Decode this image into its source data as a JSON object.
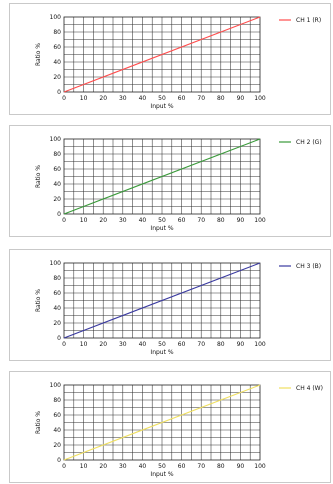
{
  "chart_data": [
    {
      "type": "line",
      "xlabel": "Input %",
      "ylabel": "Ratio %",
      "xlim": [
        0,
        100
      ],
      "ylim": [
        0,
        100
      ],
      "x_ticks": [
        0,
        10,
        20,
        30,
        40,
        50,
        60,
        70,
        80,
        90,
        100
      ],
      "y_ticks": [
        0,
        20,
        40,
        60,
        80,
        100
      ],
      "grid": true,
      "legend_position": "top-right",
      "series": [
        {
          "name": "CH 1 (R)",
          "color": "#ff4d4d",
          "x": [
            0,
            100
          ],
          "y": [
            0,
            100
          ]
        }
      ]
    },
    {
      "type": "line",
      "xlabel": "Input %",
      "ylabel": "Ratio %",
      "xlim": [
        0,
        100
      ],
      "ylim": [
        0,
        100
      ],
      "x_ticks": [
        0,
        10,
        20,
        30,
        40,
        50,
        60,
        70,
        80,
        90,
        100
      ],
      "y_ticks": [
        0,
        20,
        40,
        60,
        80,
        100
      ],
      "grid": true,
      "legend_position": "top-right",
      "series": [
        {
          "name": "CH 2 (G)",
          "color": "#3a9a3a",
          "x": [
            0,
            100
          ],
          "y": [
            0,
            100
          ]
        }
      ]
    },
    {
      "type": "line",
      "xlabel": "Input %",
      "ylabel": "Ratio %",
      "xlim": [
        0,
        100
      ],
      "ylim": [
        0,
        100
      ],
      "x_ticks": [
        0,
        10,
        20,
        30,
        40,
        50,
        60,
        70,
        80,
        90,
        100
      ],
      "y_ticks": [
        0,
        20,
        40,
        60,
        80,
        100
      ],
      "grid": true,
      "legend_position": "top-right",
      "series": [
        {
          "name": "CH 3 (B)",
          "color": "#3a3aa0",
          "x": [
            0,
            100
          ],
          "y": [
            0,
            100
          ]
        }
      ]
    },
    {
      "type": "line",
      "xlabel": "Input %",
      "ylabel": "Ratio %",
      "xlim": [
        0,
        100
      ],
      "ylim": [
        0,
        100
      ],
      "x_ticks": [
        0,
        10,
        20,
        30,
        40,
        50,
        60,
        70,
        80,
        90,
        100
      ],
      "y_ticks": [
        0,
        20,
        40,
        60,
        80,
        100
      ],
      "grid": true,
      "legend_position": "top-right",
      "series": [
        {
          "name": "CH 4 (W)",
          "color": "#f0e060",
          "x": [
            0,
            100
          ],
          "y": [
            0,
            100
          ]
        }
      ]
    }
  ]
}
